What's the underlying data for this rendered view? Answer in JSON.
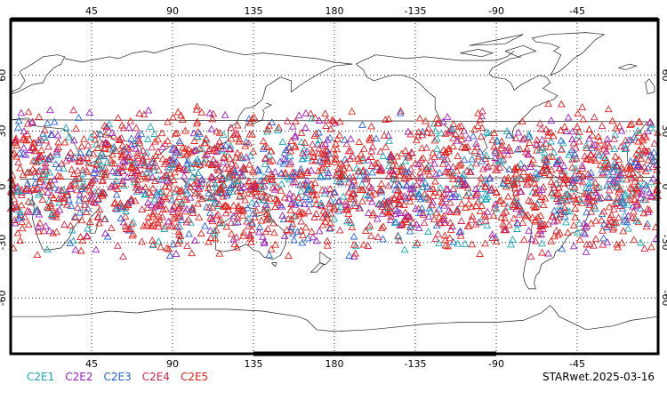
{
  "map": {
    "projection": "cylindrical-equidistant",
    "central_longitude": 180,
    "lon_range": [
      0,
      360
    ],
    "lat_range": [
      -90,
      90
    ],
    "grid": "dotted",
    "lon_tick_labels_top": [
      "45",
      "90",
      "135",
      "180",
      "-135",
      "-90",
      "-45"
    ],
    "lon_tick_labels_bottom": [
      "45",
      "90",
      "135",
      "180",
      "-135",
      "-90",
      "-45"
    ],
    "lat_tick_labels_left": [
      "60",
      "30",
      "0",
      "-30",
      "-60"
    ],
    "lat_tick_labels_right": [
      "60",
      "30",
      "0",
      "-30",
      "-60"
    ],
    "lat_ticks": [
      60,
      30,
      0,
      -30,
      -60
    ],
    "lon_ticks": [
      45,
      90,
      135,
      180,
      225,
      270,
      315
    ],
    "marker": "triangle-outline",
    "observation_band_lat": [
      -40,
      45
    ]
  },
  "legend": [
    {
      "label": "C2E1",
      "color": "#1aa8b8"
    },
    {
      "label": "C2E2",
      "color": "#9b1fbf"
    },
    {
      "label": "C2E3",
      "color": "#2a66d6"
    },
    {
      "label": "C2E4",
      "color": "#d6284a"
    },
    {
      "label": "C2E5",
      "color": "#e0231e"
    }
  ],
  "stamp": "STARwet.2025-03-16"
}
